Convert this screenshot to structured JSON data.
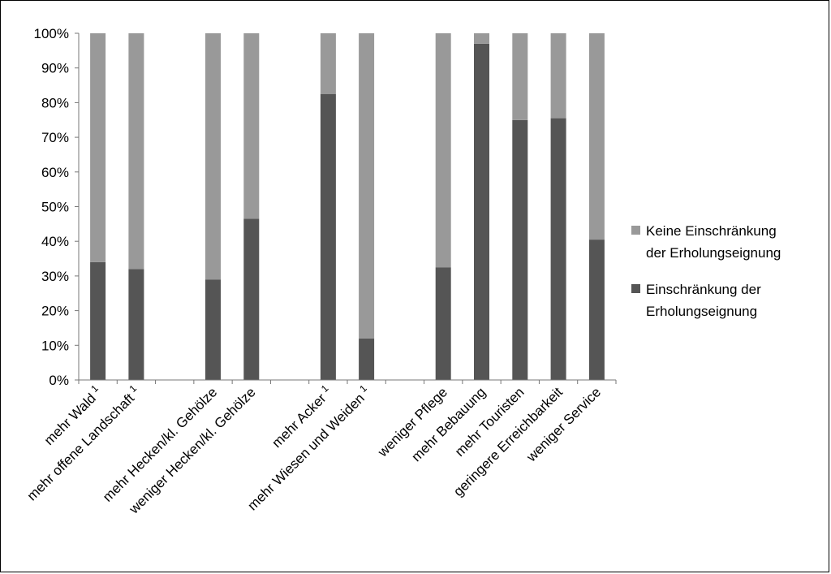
{
  "chart_data": {
    "type": "bar",
    "stacked": true,
    "categories": [
      "mehr Wald 1",
      "mehr offene Landschaft 1",
      "",
      "mehr Hecken/kl. Gehölze",
      "weniger Hecken/kl. Gehölze",
      "",
      "mehr Acker 1",
      "mehr Wiesen und Weiden 1",
      "",
      "weniger Pflege",
      "mehr Bebauung",
      "mehr Touristen",
      "geringere Erreichbarkeit",
      "weniger Service"
    ],
    "category_display": [
      {
        "text": "mehr Wald",
        "sup": "1"
      },
      {
        "text": "mehr offene Landschaft",
        "sup": "1"
      },
      {
        "text": "",
        "sup": ""
      },
      {
        "text": "mehr Hecken/kl. Gehölze",
        "sup": ""
      },
      {
        "text": "weniger Hecken/kl. Gehölze",
        "sup": ""
      },
      {
        "text": "",
        "sup": ""
      },
      {
        "text": "mehr Acker",
        "sup": "1"
      },
      {
        "text": "mehr Wiesen und Weiden",
        "sup": "1"
      },
      {
        "text": "",
        "sup": ""
      },
      {
        "text": "weniger Pflege",
        "sup": ""
      },
      {
        "text": "mehr Bebauung",
        "sup": ""
      },
      {
        "text": "mehr Touristen",
        "sup": ""
      },
      {
        "text": "geringere Erreichbarkeit",
        "sup": ""
      },
      {
        "text": "weniger Service",
        "sup": ""
      }
    ],
    "series": [
      {
        "name": "Einschränkung der Erholungseignung",
        "color": "#555555",
        "values": [
          34,
          32,
          null,
          29,
          46.5,
          null,
          82.5,
          12,
          null,
          32.5,
          97,
          75,
          75.5,
          40.5
        ]
      },
      {
        "name": "Keine Einschränkung der Erholungseignung",
        "color": "#999999",
        "values": [
          66,
          68,
          null,
          71,
          53.5,
          null,
          17.5,
          88,
          null,
          67.5,
          3,
          25,
          24.5,
          59.5
        ]
      }
    ],
    "yticks": [
      "0%",
      "10%",
      "20%",
      "30%",
      "40%",
      "50%",
      "60%",
      "70%",
      "80%",
      "90%",
      "100%"
    ],
    "ylim": [
      0,
      100
    ],
    "grid": false,
    "legend": {
      "placement": "right",
      "entries": [
        {
          "lines": [
            "Keine Einschränkung",
            "der Erholungseignung"
          ],
          "color": "#999999"
        },
        {
          "lines": [
            "Einschränkung der",
            "Erholungseignung"
          ],
          "color": "#555555"
        }
      ]
    },
    "title": "",
    "xlabel": "",
    "ylabel": ""
  }
}
